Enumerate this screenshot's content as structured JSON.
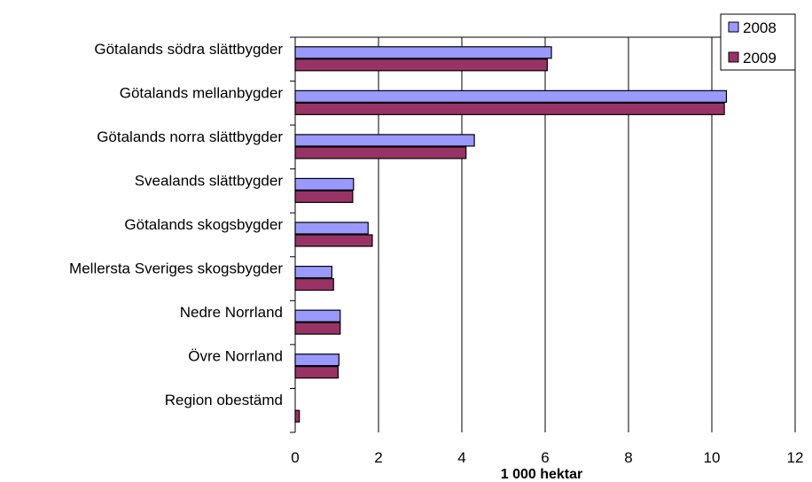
{
  "chart_data": {
    "type": "bar",
    "orientation": "horizontal",
    "categories": [
      "Götalands södra slättbygder",
      "Götalands mellanbygder",
      "Götalands norra slättbygder",
      "Svealands slättbygder",
      "Götalands skogsbygder",
      "Mellersta Sveriges skogsbygder",
      "Nedre Norrland",
      "Övre Norrland",
      "Region obestämd"
    ],
    "series": [
      {
        "name": "2008",
        "color": "#9999ff",
        "values": [
          6.15,
          10.35,
          4.3,
          1.4,
          1.75,
          0.88,
          1.08,
          1.05,
          0
        ]
      },
      {
        "name": "2009",
        "color": "#993366",
        "values": [
          6.05,
          10.3,
          4.1,
          1.38,
          1.85,
          0.92,
          1.08,
          1.03,
          0.1
        ]
      }
    ],
    "xlabel": "1 000 hektar",
    "ylabel": "",
    "xlim": [
      0,
      12
    ],
    "xticks": [
      "0",
      "2",
      "4",
      "6",
      "8",
      "10",
      "12"
    ],
    "grid": "vertical",
    "legend": "top-right"
  }
}
